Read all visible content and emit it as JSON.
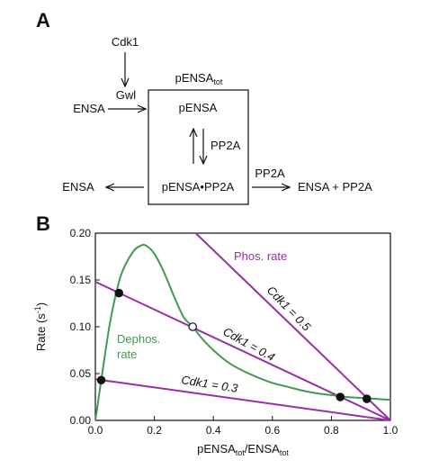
{
  "panel_a": {
    "letter": "A",
    "cdk1": "Cdk1",
    "gwl": "Gwl",
    "ensa_left_top": "ENSA",
    "box_title_main": "pENSA",
    "box_title_sub": "tot",
    "pensa": "pENSA",
    "pp2a_inner": "PP2A",
    "complex": "pENSA•PP2A",
    "ensa_left_bottom": "ENSA",
    "pp2a_outer": "PP2A",
    "products": "ENSA + PP2A"
  },
  "panel_b": {
    "letter": "B",
    "phos_rate_label": "Phos. rate",
    "dephos_label_line1": "Dephos.",
    "dephos_label_line2": "rate",
    "cdk_labels": [
      "Cdk1 = 0.5",
      "Cdk1 = 0.4",
      "Cdk1 = 0.3"
    ],
    "ylabel": "Rate (s",
    "ylabel_sup": "-1",
    "ylabel_end": ")",
    "xlabel_a": "pENSA",
    "xlabel_a_sub": "tot",
    "xlabel_b": "/ENSA",
    "xlabel_b_sub": "tot"
  },
  "chart_data": {
    "type": "line",
    "xlim": [
      0.0,
      1.0
    ],
    "ylim": [
      0.0,
      0.2
    ],
    "x_ticks": [
      "0.0",
      "0.2",
      "0.4",
      "0.6",
      "0.8",
      "1.0"
    ],
    "y_ticks": [
      "0.00",
      "0.05",
      "0.10",
      "0.15",
      "0.20"
    ],
    "grid": false,
    "colors": {
      "phos": "#9b2ea8",
      "dephos": "#3f9b4f",
      "point": "#111111"
    },
    "dephos_curve": {
      "x": [
        0.0,
        0.02,
        0.05,
        0.08,
        0.1,
        0.13,
        0.15,
        0.17,
        0.2,
        0.23,
        0.27,
        0.3,
        0.33,
        0.36,
        0.4,
        0.45,
        0.5,
        0.55,
        0.6,
        0.65,
        0.7,
        0.75,
        0.8,
        0.85,
        0.9,
        0.95,
        1.0
      ],
      "y": [
        0.0,
        0.043,
        0.105,
        0.148,
        0.165,
        0.181,
        0.186,
        0.187,
        0.178,
        0.16,
        0.13,
        0.11,
        0.1,
        0.088,
        0.075,
        0.062,
        0.053,
        0.046,
        0.04,
        0.036,
        0.032,
        0.029,
        0.027,
        0.025,
        0.024,
        0.023,
        0.022
      ]
    },
    "phos_lines": [
      {
        "x": [
          0.0,
          1.0
        ],
        "y": [
          0.148,
          0.0
        ]
      },
      {
        "x": [
          0.0,
          1.0
        ],
        "y": [
          0.044,
          0.0
        ]
      },
      {
        "x": [
          0.34,
          1.0
        ],
        "y": [
          0.2,
          0.0
        ]
      }
    ],
    "steady_states": [
      {
        "x": 0.02,
        "y": 0.043,
        "stable": true
      },
      {
        "x": 0.08,
        "y": 0.136,
        "stable": true
      },
      {
        "x": 0.33,
        "y": 0.1,
        "stable": false
      },
      {
        "x": 0.83,
        "y": 0.025,
        "stable": true
      },
      {
        "x": 0.92,
        "y": 0.023,
        "stable": true
      }
    ]
  }
}
